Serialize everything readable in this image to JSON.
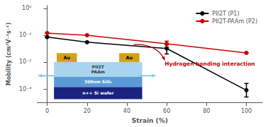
{
  "chart_data": {
    "type": "line",
    "xlabel": "Strain (%)",
    "ylabel": "Mobility (cm²V⁻¹s⁻¹)",
    "log": "y",
    "xlim": [
      -5,
      108
    ],
    "xticks": [
      0,
      20,
      40,
      60,
      80,
      100
    ],
    "ylim": [
      0.00031622776601683794,
      1.2589254117941673
    ],
    "yticks": [
      {
        "value": 0.001,
        "label": "10⁻³"
      },
      {
        "value": 0.01,
        "label": "10⁻²"
      },
      {
        "value": 0.1,
        "label": "10⁻¹"
      },
      {
        "value": 1,
        "label": "10⁰"
      }
    ],
    "grid": false,
    "legend": "upper right",
    "series": [
      {
        "name": "PII2T (P1)",
        "color": "#000000",
        "marker": "circle",
        "x": [
          0,
          20,
          60,
          100
        ],
        "values": [
          0.085,
          0.055,
          0.032,
          0.0009
        ],
        "error_low": [
          0,
          0,
          0.012,
          0.0004
        ],
        "error_high": [
          0,
          0,
          0.012,
          0.0007
        ]
      },
      {
        "name": "PII2T-PAAm (P2)",
        "color": "#cc0000",
        "marker": "circle",
        "x": [
          0,
          20,
          60,
          100
        ],
        "values": [
          0.12,
          0.1,
          0.048,
          0.022
        ],
        "error_low": [
          0,
          0,
          0.012,
          0
        ],
        "error_high": [
          0,
          0,
          0.012,
          0
        ]
      }
    ],
    "annotations": [
      {
        "text": "Hydrogen bonding interaction",
        "color": "#cc0000",
        "arrow_color": "#aa0000"
      }
    ],
    "inset": {
      "arrow_color": "#7ec8e3",
      "layers": [
        {
          "texts": [
            "n++ Si wafer"
          ],
          "color": "#1a237e"
        },
        {
          "texts": [
            "300nm SiO₂"
          ],
          "color": "#5b9bd5"
        },
        {
          "texts": [
            "PII2T",
            "PAAm"
          ],
          "color": "#a8d4f0"
        },
        {
          "texts": [
            "Au",
            "Au"
          ],
          "color": "#d4a017"
        }
      ]
    }
  }
}
